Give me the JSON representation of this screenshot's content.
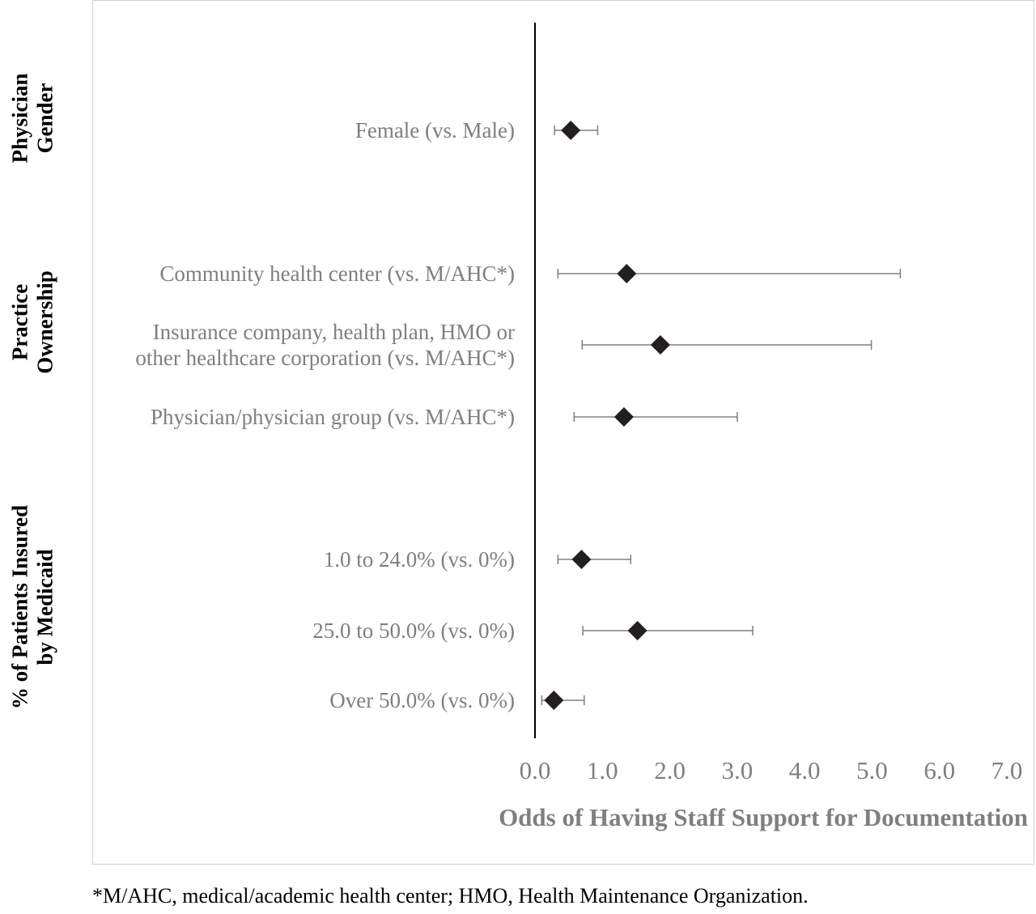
{
  "chart_data": {
    "type": "forest",
    "xlabel": "Odds of Having Staff Support for Documentation",
    "xlim": [
      0,
      7
    ],
    "xticks": [
      "0.0",
      "1.0",
      "2.0",
      "3.0",
      "4.0",
      "5.0",
      "6.0",
      "7.0"
    ],
    "reference_line": 0,
    "groups": [
      {
        "name": [
          "Physician",
          "Gender"
        ],
        "rows": [
          {
            "label": [
              "Female (vs. Male)"
            ],
            "or": 0.53,
            "ci_low": 0.29,
            "ci_high": 0.93
          }
        ]
      },
      {
        "name": [
          "Practice",
          "Ownership"
        ],
        "rows": [
          {
            "label": [
              "Community health center (vs. M/AHC*)"
            ],
            "or": 1.36,
            "ci_low": 0.34,
            "ci_high": 5.42
          },
          {
            "label": [
              "Insurance company, health plan, HMO or",
              "other healthcare corporation (vs. M/AHC*)"
            ],
            "or": 1.86,
            "ci_low": 0.7,
            "ci_high": 4.99
          },
          {
            "label": [
              "Physician/physician group (vs. M/AHC*)"
            ],
            "or": 1.32,
            "ci_low": 0.58,
            "ci_high": 3.0
          }
        ]
      },
      {
        "name": [
          "% of Patients Insured",
          "by Medicaid"
        ],
        "rows": [
          {
            "label": [
              "1.0 to 24.0% (vs. 0%)"
            ],
            "or": 0.69,
            "ci_low": 0.34,
            "ci_high": 1.42
          },
          {
            "label": [
              "25.0 to 50.0% (vs. 0%)"
            ],
            "or": 1.52,
            "ci_low": 0.71,
            "ci_high": 3.23
          },
          {
            "label": [
              "Over 50.0% (vs. 0%)"
            ],
            "or": 0.28,
            "ci_low": 0.1,
            "ci_high": 0.73
          }
        ]
      }
    ],
    "marker_color": "#231f20",
    "error_bar_color": "#808080"
  },
  "footnote": "*M/AHC, medical/academic health center; HMO, Health Maintenance Organization."
}
